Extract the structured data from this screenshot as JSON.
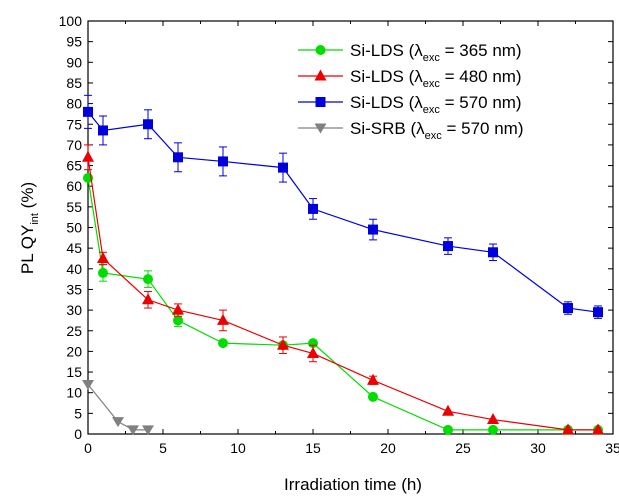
{
  "chart_data": {
    "type": "line",
    "title": "",
    "xlabel": "Irradiation time (h)",
    "ylabel": {
      "main": "PL QY",
      "sub": "int",
      "suffix": " (%)"
    },
    "xlim": [
      0,
      35
    ],
    "ylim": [
      0,
      100
    ],
    "xticks": [
      0,
      5,
      10,
      15,
      20,
      25,
      30,
      35
    ],
    "yticks": [
      0,
      5,
      10,
      15,
      20,
      25,
      30,
      35,
      40,
      45,
      50,
      55,
      60,
      65,
      70,
      75,
      80,
      85,
      90,
      95,
      100
    ],
    "grid": false,
    "legend_position": "top-right",
    "series": [
      {
        "name": {
          "main": "Si-LDS (λ",
          "sub": "exc",
          "suffix": " = 365 nm)"
        },
        "color": "#00dd00",
        "marker": "circle",
        "x": [
          0,
          1,
          4,
          6,
          9,
          13,
          15,
          19,
          24,
          27,
          32,
          34
        ],
        "y": [
          62,
          39,
          37.5,
          27.5,
          22,
          21.5,
          22,
          9,
          1,
          1,
          1,
          1
        ],
        "err": [
          0,
          2,
          2,
          1.5,
          0,
          0,
          0,
          0,
          0,
          0,
          0,
          0
        ]
      },
      {
        "name": {
          "main": "Si-LDS (λ",
          "sub": "exc",
          "suffix": " = 480 nm)"
        },
        "color": "#ee0000",
        "marker": "triangle",
        "x": [
          0,
          1,
          4,
          6,
          9,
          13,
          15,
          19,
          24,
          27,
          32,
          34
        ],
        "y": [
          67,
          42.5,
          32.5,
          30,
          27.5,
          21.5,
          19.5,
          13,
          5.5,
          3.5,
          1,
          1
        ],
        "err": [
          3,
          1.5,
          2,
          1.5,
          2.5,
          2,
          2,
          1,
          0,
          0,
          0,
          0
        ]
      },
      {
        "name": {
          "main": "Si-LDS (λ",
          "sub": "exc",
          "suffix": " = 570 nm)"
        },
        "color": "#0000dd",
        "marker": "square",
        "x": [
          0,
          1,
          4,
          6,
          9,
          13,
          15,
          19,
          24,
          27,
          32,
          34
        ],
        "y": [
          78,
          73.5,
          75,
          67,
          66,
          64.5,
          54.5,
          49.5,
          45.5,
          44,
          30.5,
          29.5
        ],
        "err": [
          4,
          3.5,
          3.5,
          3.5,
          3.5,
          3.5,
          2.5,
          2.5,
          2,
          2,
          1.5,
          1.5
        ]
      },
      {
        "name": {
          "main": "Si-SRB (λ",
          "sub": "exc",
          "suffix": " = 570 nm)"
        },
        "color": "#808080",
        "marker": "triangle-down",
        "x": [
          0,
          2,
          3,
          4
        ],
        "y": [
          12,
          3,
          1,
          1
        ],
        "err": [
          0,
          0,
          0,
          0
        ]
      }
    ]
  }
}
